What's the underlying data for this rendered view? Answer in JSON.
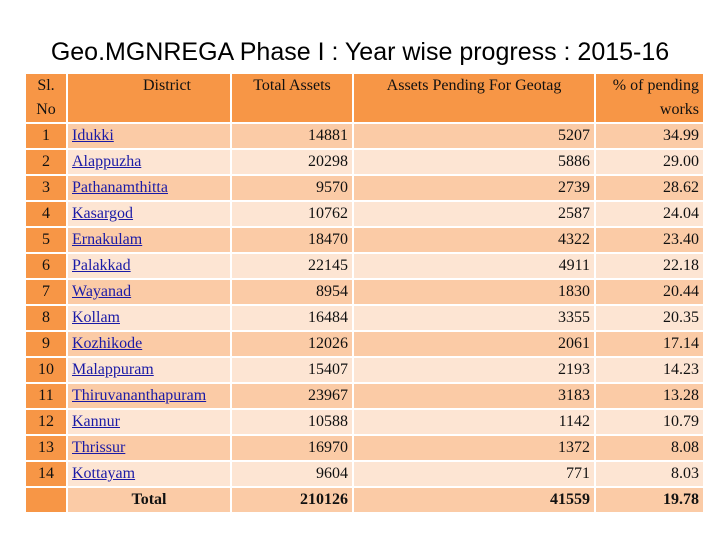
{
  "title": "Geo.MGNREGA Phase I : Year wise progress  : 2015-16",
  "table": {
    "headers": [
      "Sl. No",
      "District",
      "Total Assets",
      "Assets Pending For Geotag",
      "% of pending works"
    ],
    "rows": [
      {
        "sl": "1",
        "district": "Idukki",
        "total": "14881",
        "pending": "5207",
        "pct": "34.99"
      },
      {
        "sl": "2",
        "district": "Alappuzha",
        "total": "20298",
        "pending": "5886",
        "pct": "29.00"
      },
      {
        "sl": "3",
        "district": "Pathanamthitta",
        "total": "9570",
        "pending": "2739",
        "pct": "28.62"
      },
      {
        "sl": "4",
        "district": "Kasargod",
        "total": "10762",
        "pending": "2587",
        "pct": "24.04"
      },
      {
        "sl": "5",
        "district": "Ernakulam",
        "total": "18470",
        "pending": "4322",
        "pct": "23.40"
      },
      {
        "sl": "6",
        "district": "Palakkad",
        "total": "22145",
        "pending": "4911",
        "pct": "22.18"
      },
      {
        "sl": "7",
        "district": "Wayanad",
        "total": "8954",
        "pending": "1830",
        "pct": "20.44"
      },
      {
        "sl": "8",
        "district": "Kollam",
        "total": "16484",
        "pending": "3355",
        "pct": "20.35"
      },
      {
        "sl": "9",
        "district": "Kozhikode",
        "total": "12026",
        "pending": "2061",
        "pct": "17.14"
      },
      {
        "sl": "10",
        "district": "Malappuram",
        "total": "15407",
        "pending": "2193",
        "pct": "14.23"
      },
      {
        "sl": "11",
        "district": "Thiruvananthapuram",
        "total": "23967",
        "pending": "3183",
        "pct": "13.28"
      },
      {
        "sl": "12",
        "district": "Kannur",
        "total": "10588",
        "pending": "1142",
        "pct": "10.79"
      },
      {
        "sl": "13",
        "district": "Thrissur",
        "total": "16970",
        "pending": "1372",
        "pct": "8.08"
      },
      {
        "sl": "14",
        "district": "Kottayam",
        "total": "9604",
        "pending": "771",
        "pct": "8.03"
      }
    ],
    "total": {
      "label": "Total",
      "total": "210126",
      "pending": "41559",
      "pct": "19.78"
    }
  },
  "colors": {
    "header": "#F79646",
    "row_dark": "#FBCBA6",
    "row_light": "#FDE5D3",
    "link": "#1a1aa6"
  }
}
